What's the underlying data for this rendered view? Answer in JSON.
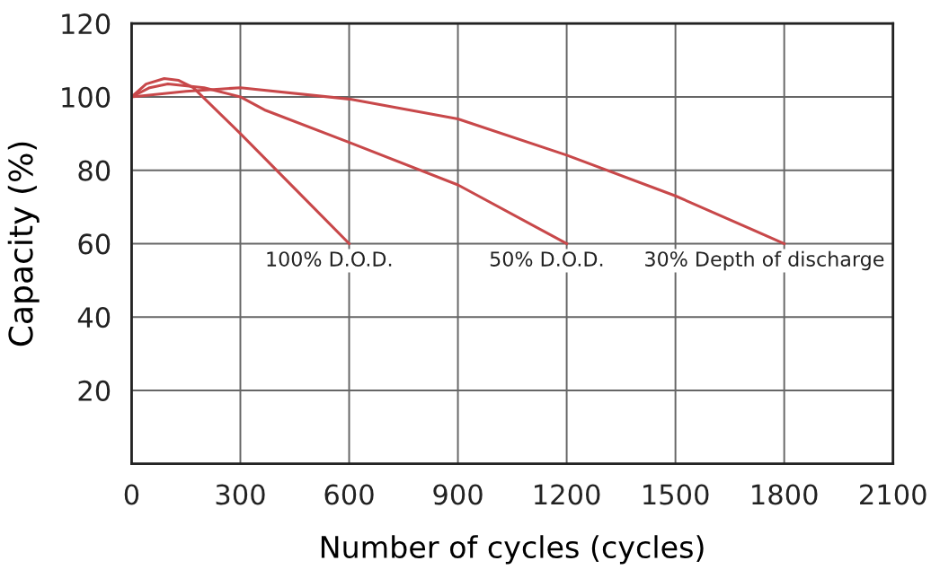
{
  "chart_data": {
    "type": "line",
    "xlabel": "Number of cycles (cycles)",
    "ylabel": "Capacity (%)",
    "xlim": [
      0,
      2100
    ],
    "xticks": [
      0,
      300,
      600,
      900,
      1200,
      1500,
      1800,
      2100
    ],
    "ylim": [
      0,
      120
    ],
    "yticks": [
      20,
      40,
      60,
      80,
      100,
      120
    ],
    "grid": true,
    "marker": "none",
    "line_style": "solid",
    "series": [
      {
        "color": "#c8484a",
        "x": [
          0,
          40,
          90,
          130,
          170,
          300,
          450,
          600
        ],
        "values": [
          100,
          103.5,
          105,
          104.5,
          102.5,
          90,
          75,
          60
        ]
      },
      {
        "color": "#c8484a",
        "x": [
          0,
          50,
          100,
          200,
          300,
          370,
          600,
          900,
          1200
        ],
        "values": [
          100,
          102.5,
          103.5,
          102.5,
          100,
          96.3,
          87.6,
          76,
          60
        ]
      },
      {
        "color": "#c8484a",
        "x": [
          0,
          150,
          300,
          600,
          900,
          1200,
          1500,
          1800
        ],
        "values": [
          100,
          101.5,
          102.5,
          99.4,
          94,
          84.1,
          73,
          60
        ]
      }
    ],
    "annotations": [
      {
        "text": "100% D.O.D.",
        "x": 600,
        "y": 60
      },
      {
        "text": "50% D.O.D.",
        "x": 1200,
        "y": 60
      },
      {
        "text": "30% Depth of discharge",
        "x": 1800,
        "y": 60
      }
    ]
  }
}
